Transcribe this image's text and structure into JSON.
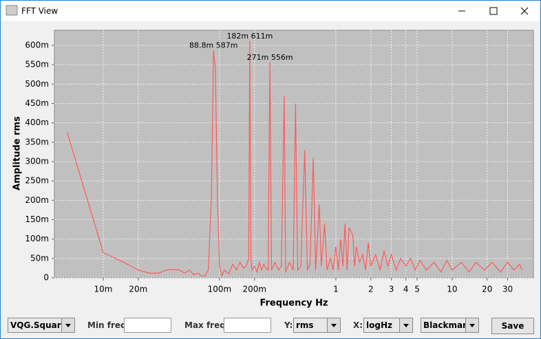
{
  "window": {
    "title": "FFT View"
  },
  "chart_data": {
    "type": "line",
    "xlabel": "Frequency Hz",
    "ylabel": "Amplitude rms",
    "color": "#ff5a5a",
    "log_x": true,
    "grid": true,
    "xlim": [
      0.0038,
      50
    ],
    "ylim": [
      0,
      0.639
    ],
    "xticks": [
      {
        "value": 0.01,
        "label": "10m"
      },
      {
        "value": 0.02,
        "label": "20m"
      },
      {
        "value": 0.1,
        "label": "100m"
      },
      {
        "value": 0.2,
        "label": "200m"
      },
      1,
      2,
      3,
      4,
      5,
      10,
      20,
      30
    ],
    "yticks": [
      0,
      {
        "value": 0.05,
        "label": "50m"
      },
      {
        "value": 0.1,
        "label": "100m"
      },
      {
        "value": 0.15,
        "label": "150m"
      },
      {
        "value": 0.2,
        "label": "200m"
      },
      {
        "value": 0.25,
        "label": "250m"
      },
      {
        "value": 0.3,
        "label": "300m"
      },
      {
        "value": 0.35,
        "label": "350m"
      },
      {
        "value": 0.4,
        "label": "400m"
      },
      {
        "value": 0.45,
        "label": "450m"
      },
      {
        "value": 0.5,
        "label": "500m"
      },
      {
        "value": 0.55,
        "label": "550m"
      },
      {
        "value": 0.6,
        "label": "600m"
      }
    ],
    "x": [
      0.0049,
      0.01,
      0.015,
      0.02,
      0.025,
      0.03,
      0.035,
      0.04,
      0.045,
      0.05,
      0.055,
      0.06,
      0.065,
      0.07,
      0.075,
      0.08,
      0.085,
      0.0888,
      0.092,
      0.096,
      0.1,
      0.105,
      0.11,
      0.12,
      0.13,
      0.14,
      0.15,
      0.16,
      0.17,
      0.178,
      0.182,
      0.186,
      0.19,
      0.2,
      0.21,
      0.22,
      0.23,
      0.24,
      0.25,
      0.262,
      0.271,
      0.28,
      0.3,
      0.32,
      0.34,
      0.36,
      0.37,
      0.4,
      0.43,
      0.45,
      0.47,
      0.5,
      0.54,
      0.57,
      0.6,
      0.64,
      0.67,
      0.72,
      0.75,
      0.8,
      0.84,
      0.9,
      0.95,
      1.0,
      1.05,
      1.1,
      1.15,
      1.2,
      1.25,
      1.3,
      1.4,
      1.45,
      1.5,
      1.6,
      1.7,
      1.8,
      1.9,
      2.0,
      2.2,
      2.4,
      2.6,
      2.8,
      3.0,
      3.3,
      3.6,
      4.0,
      4.4,
      4.8,
      5.3,
      6,
      7,
      8,
      9,
      10,
      12,
      14,
      16,
      19,
      22,
      26,
      30,
      34,
      38,
      40
    ],
    "values": [
      0.375,
      0.065,
      0.04,
      0.02,
      0.012,
      0.012,
      0.02,
      0.022,
      0.02,
      0.012,
      0.02,
      0.008,
      0.012,
      0.005,
      0.005,
      0.02,
      0.2,
      0.587,
      0.54,
      0.2,
      0.03,
      0.005,
      0.02,
      0.01,
      0.035,
      0.02,
      0.04,
      0.025,
      0.03,
      0.05,
      0.611,
      0.05,
      0.02,
      0.03,
      0.015,
      0.04,
      0.02,
      0.035,
      0.025,
      0.02,
      0.556,
      0.02,
      0.04,
      0.02,
      0.03,
      0.47,
      0.015,
      0.04,
      0.02,
      0.45,
      0.02,
      0.03,
      0.33,
      0.02,
      0.035,
      0.31,
      0.02,
      0.19,
      0.03,
      0.14,
      0.02,
      0.05,
      0.02,
      0.08,
      0.02,
      0.1,
      0.03,
      0.14,
      0.02,
      0.13,
      0.11,
      0.03,
      0.08,
      0.04,
      0.06,
      0.02,
      0.09,
      0.03,
      0.06,
      0.02,
      0.07,
      0.03,
      0.06,
      0.02,
      0.05,
      0.03,
      0.05,
      0.02,
      0.045,
      0.02,
      0.04,
      0.015,
      0.045,
      0.02,
      0.04,
      0.015,
      0.04,
      0.02,
      0.04,
      0.015,
      0.04,
      0.02,
      0.035,
      0.02
    ],
    "annotations": [
      {
        "text": "88.8m 587m",
        "x": 0.0888,
        "y": 0.587
      },
      {
        "text": "182m 611m",
        "x": 0.182,
        "y": 0.611
      },
      {
        "text": "271m 556m",
        "x": 0.271,
        "y": 0.556
      }
    ]
  },
  "controls": {
    "signal": "VQG.Square",
    "min_freq_label": "Min freq:",
    "max_freq_label": "Max freq:",
    "y_label": "Y:",
    "y_mode": "rms",
    "x_label": "X:",
    "x_mode": "logHz",
    "window_fn": "Blackman",
    "save": "Save"
  }
}
